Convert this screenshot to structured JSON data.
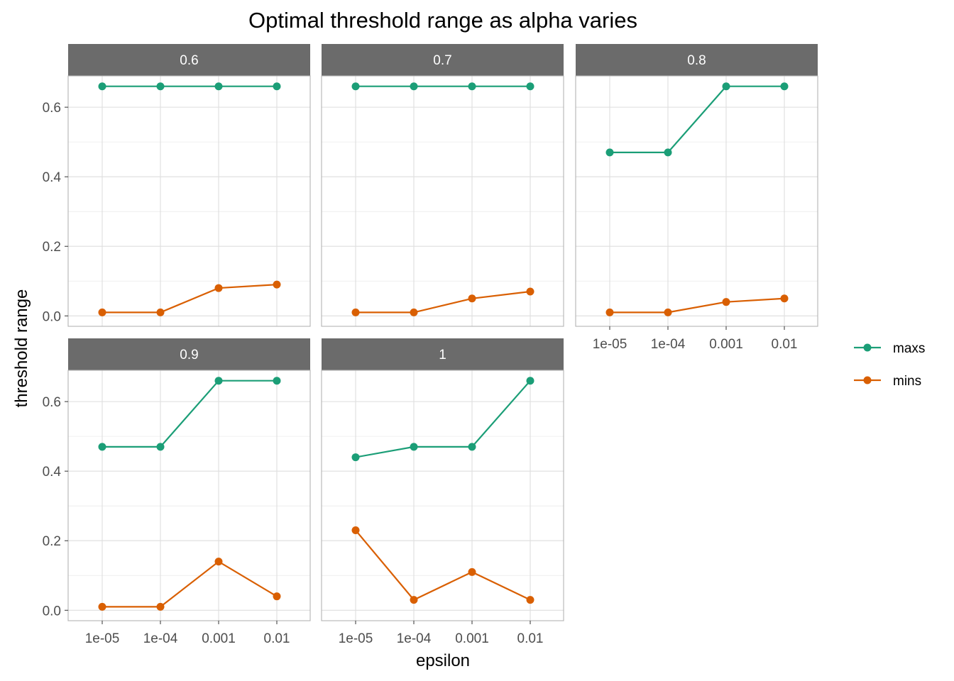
{
  "chart_data": {
    "type": "line",
    "title": "Optimal threshold range as alpha varies",
    "xlabel": "epsilon",
    "ylabel": "threshold range",
    "x_categories": [
      "1e-05",
      "1e-04",
      "0.001",
      "0.01"
    ],
    "y_ticks": [
      "0.0",
      "0.2",
      "0.4",
      "0.6"
    ],
    "ylim": [
      -0.03,
      0.69
    ],
    "grid": true,
    "legend_position": "right",
    "colors": {
      "maxs": "#1b9e77",
      "mins": "#d95f02",
      "strip": "#6b6b6b"
    },
    "series_names": [
      "maxs",
      "mins"
    ],
    "facets": [
      {
        "label": "0.6",
        "maxs": [
          0.66,
          0.66,
          0.66,
          0.66
        ],
        "mins": [
          0.01,
          0.01,
          0.08,
          0.09
        ]
      },
      {
        "label": "0.7",
        "maxs": [
          0.66,
          0.66,
          0.66,
          0.66
        ],
        "mins": [
          0.01,
          0.01,
          0.05,
          0.07
        ]
      },
      {
        "label": "0.8",
        "maxs": [
          0.47,
          0.47,
          0.66,
          0.66
        ],
        "mins": [
          0.01,
          0.01,
          0.04,
          0.05
        ]
      },
      {
        "label": "0.9",
        "maxs": [
          0.47,
          0.47,
          0.66,
          0.66
        ],
        "mins": [
          0.01,
          0.01,
          0.14,
          0.04
        ]
      },
      {
        "label": "1",
        "maxs": [
          0.44,
          0.47,
          0.47,
          0.66
        ],
        "mins": [
          0.23,
          0.03,
          0.11,
          0.03
        ]
      }
    ]
  }
}
